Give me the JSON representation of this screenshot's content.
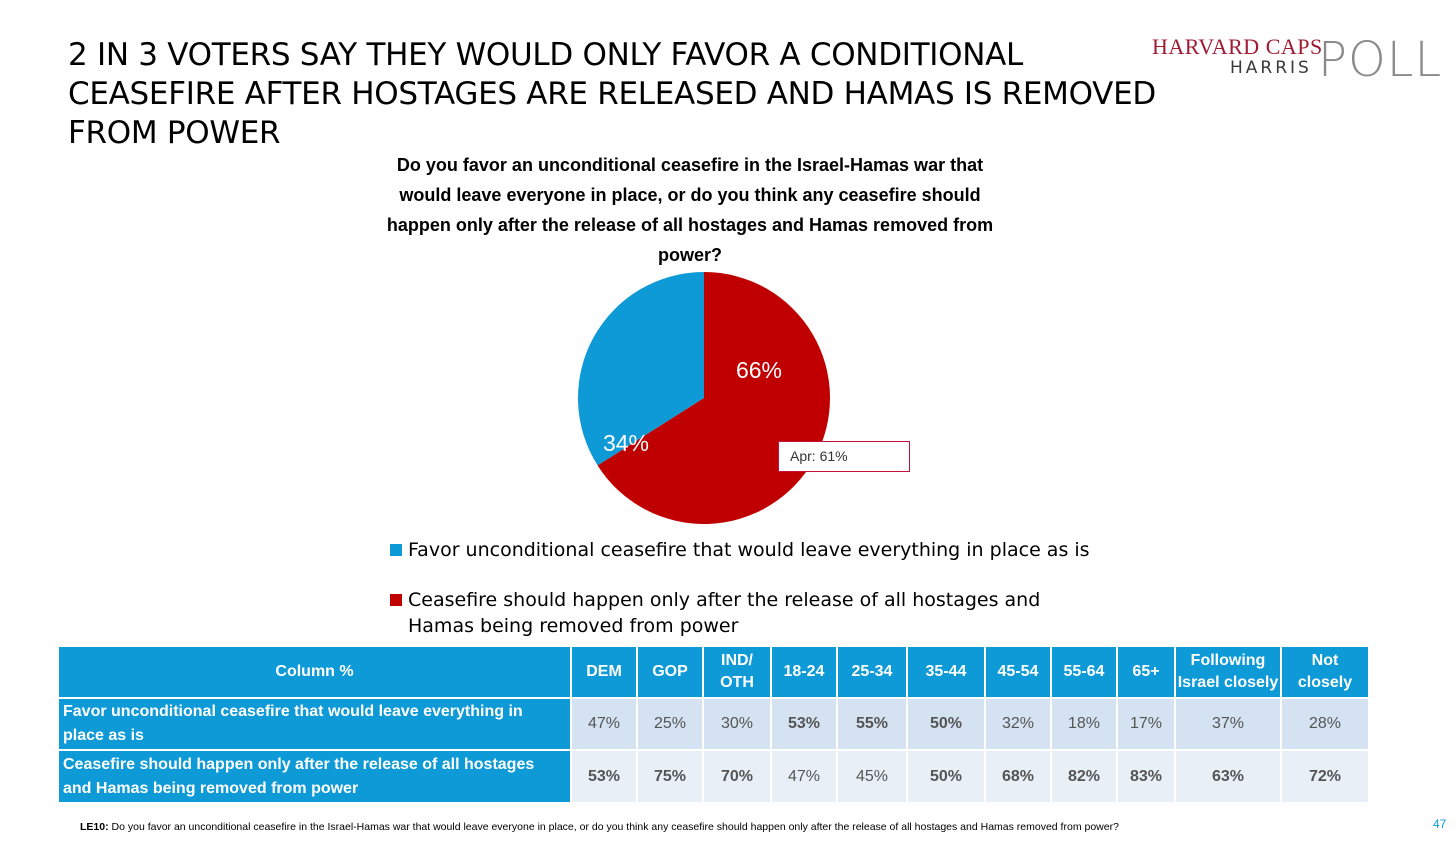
{
  "title": "2 IN 3 VOTERS SAY THEY WOULD ONLY FAVOR A CONDITIONAL CEASEFIRE AFTER HOSTAGES ARE RELEASED AND HAMAS IS REMOVED FROM POWER",
  "logo": {
    "line1": "HARVARD CAPS",
    "line2": "HARRIS",
    "line3": "POLL"
  },
  "colors": {
    "blue": "#0e9ad6",
    "red": "#c00000",
    "accent": "#c0143c"
  },
  "chart_data": {
    "type": "pie",
    "title": "Do you favor an unconditional ceasefire in the Israel-Hamas war that would leave everyone in place, or do you think any ceasefire should happen only after the release of all hostages and Hamas removed from power?",
    "slices": [
      {
        "label": "Favor unconditional ceasefire that would leave everything in place as is",
        "value": 34,
        "display": "34%",
        "color": "#0e9ad6"
      },
      {
        "label": "Ceasefire should happen only after the release of all hostages and Hamas being removed from power",
        "value": 66,
        "display": "66%",
        "color": "#c00000"
      }
    ],
    "annotation": "Apr: 61%",
    "legend": [
      {
        "text": "Favor unconditional ceasefire that would leave everything in place as is"
      },
      {
        "text_line1": "Ceasefire should happen only after the release of all hostages and",
        "text_line2": "Hamas being removed from power"
      }
    ]
  },
  "table": {
    "corner": "Column %",
    "columns": [
      {
        "line1": "DEM",
        "line2": ""
      },
      {
        "line1": "GOP",
        "line2": ""
      },
      {
        "line1": "IND/",
        "line2": "OTH"
      },
      {
        "line1": "18-24",
        "line2": ""
      },
      {
        "line1": "25-34",
        "line2": ""
      },
      {
        "line1": "35-44",
        "line2": ""
      },
      {
        "line1": "45-54",
        "line2": ""
      },
      {
        "line1": "55-64",
        "line2": ""
      },
      {
        "line1": "65+",
        "line2": ""
      },
      {
        "line1": "Following",
        "line2": "Israel closely"
      },
      {
        "line1": "Not",
        "line2": "closely"
      }
    ],
    "rows": [
      {
        "label_line1": "Favor unconditional ceasefire that would leave everything in",
        "label_line2": "place as is",
        "values": [
          "47%",
          "25%",
          "30%",
          "53%",
          "55%",
          "50%",
          "32%",
          "18%",
          "17%",
          "37%",
          "28%"
        ],
        "bold": [
          false,
          false,
          false,
          true,
          true,
          true,
          false,
          false,
          false,
          false,
          false
        ]
      },
      {
        "label_line1": "Ceasefire should happen only after the release of all hostages",
        "label_line2": "and Hamas being removed from power",
        "values": [
          "53%",
          "75%",
          "70%",
          "47%",
          "45%",
          "50%",
          "68%",
          "82%",
          "83%",
          "63%",
          "72%"
        ],
        "bold": [
          true,
          true,
          true,
          false,
          false,
          true,
          true,
          true,
          true,
          true,
          true
        ]
      }
    ]
  },
  "footnote": {
    "code": "LE10:",
    "text": " Do you favor an unconditional ceasefire in the Israel-Hamas war that would leave everyone in place, or do you think any ceasefire should happen only after the release of all hostages and Hamas removed from power?"
  },
  "page_number": "47"
}
